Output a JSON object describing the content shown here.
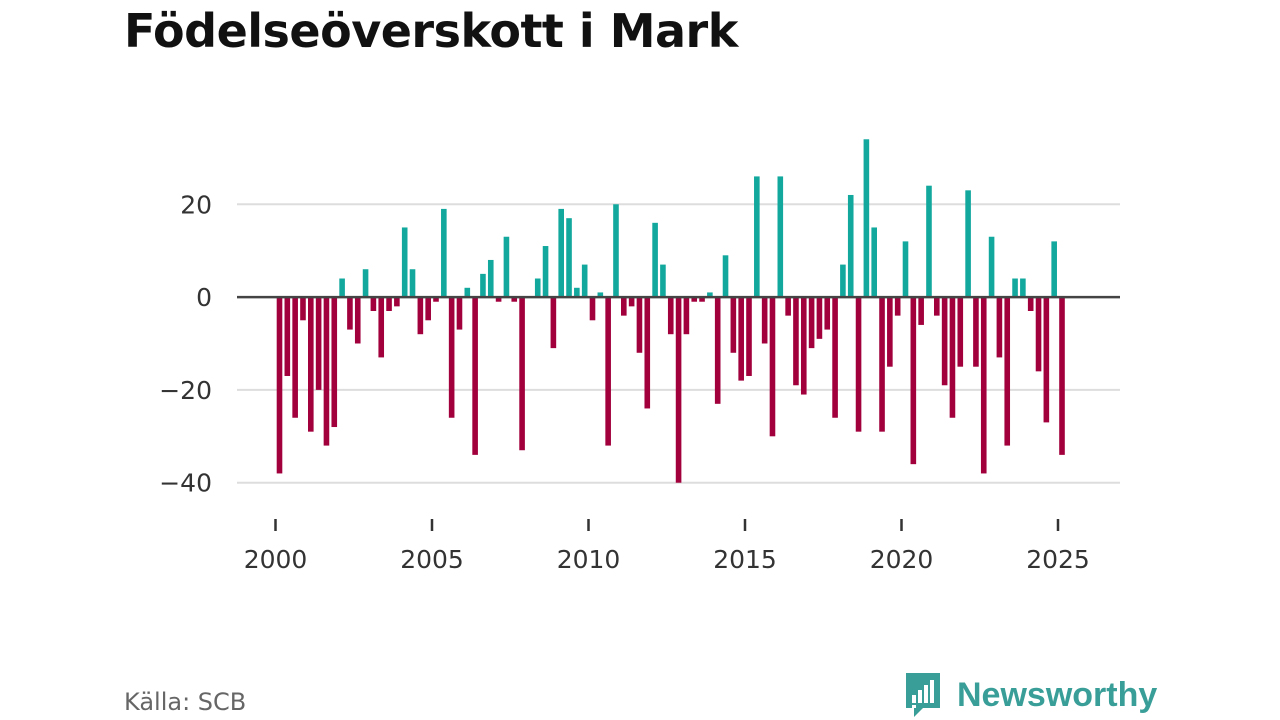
{
  "title": "Födelseöverskott i Mark",
  "source": "Källa: SCB",
  "brand": {
    "name": "Newsworthy",
    "icon": "chat-bar-chart-icon",
    "color": "#3a9e98"
  },
  "colors": {
    "positive": "#13a89e",
    "negative": "#a1003c",
    "gridline": "#dddddd",
    "zeroline": "#444444"
  },
  "chart_data": {
    "type": "bar",
    "title": "Födelseöverskott i Mark",
    "xlabel": "",
    "ylabel": "",
    "x_start": 2000,
    "period": "month-bars, one bar every 3 months starting Q1 2000",
    "x_ticks": [
      2000,
      2005,
      2010,
      2015,
      2020,
      2025
    ],
    "x_tick_labels": [
      "2000",
      "2005",
      "2010",
      "2015",
      "2020",
      "2025"
    ],
    "y_ticks": [
      20,
      0,
      -20,
      -40
    ],
    "y_tick_labels": [
      "20",
      "0",
      "−20",
      "−40"
    ],
    "ylim": [
      -42,
      36
    ],
    "grid": true,
    "values": [
      -38,
      -17,
      -26,
      -5,
      -29,
      -20,
      -32,
      -28,
      4,
      -7,
      -10,
      6,
      -3,
      -13,
      -3,
      -2,
      15,
      6,
      -8,
      -5,
      -1,
      19,
      -26,
      -7,
      2,
      -34,
      5,
      8,
      -1,
      13,
      -1,
      -33,
      0,
      4,
      11,
      -11,
      19,
      17,
      2,
      7,
      -5,
      1,
      -32,
      20,
      -4,
      -2,
      -12,
      -24,
      16,
      7,
      -8,
      -40,
      -8,
      -1,
      -1,
      1,
      -23,
      9,
      -12,
      -18,
      -17,
      26,
      -10,
      -30,
      26,
      -4,
      -19,
      -21,
      -11,
      -9,
      -7,
      -26,
      7,
      22,
      -29,
      34,
      15,
      -29,
      -15,
      -4,
      12,
      -36,
      -6,
      24,
      -4,
      -19,
      -26,
      -15,
      23,
      -15,
      -38,
      13,
      -13,
      -32,
      4,
      4,
      -3,
      -16,
      -27,
      12,
      -34
    ]
  }
}
